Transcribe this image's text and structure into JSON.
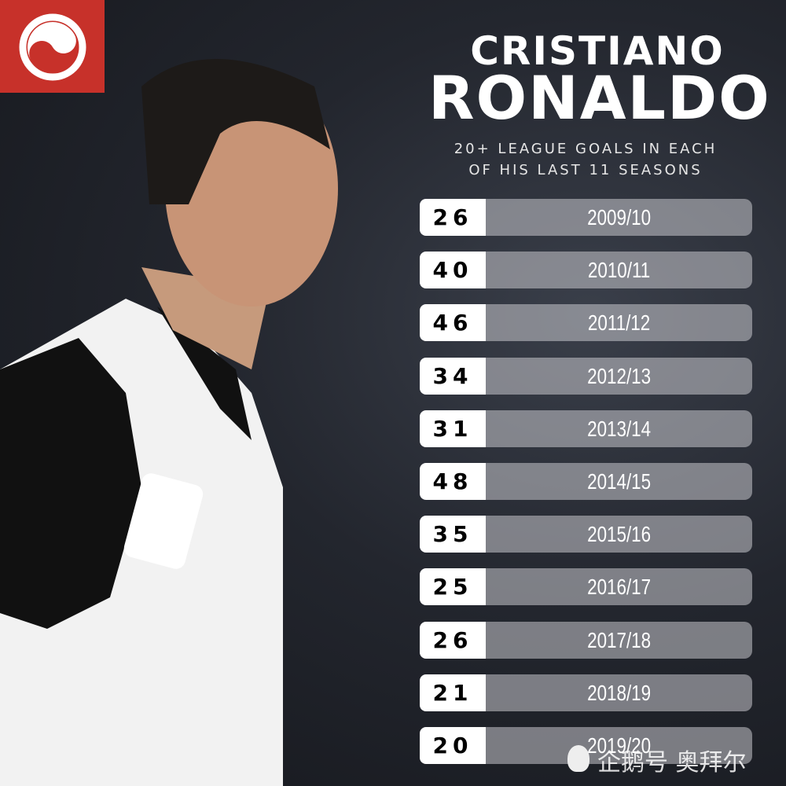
{
  "title": {
    "line1": "CRISTIANO",
    "line2": "RONALDO"
  },
  "subtitle": {
    "line1": "20+ LEAGUE GOALS IN EACH",
    "line2": "OF HIS LAST 11 SEASONS"
  },
  "brand_color": "#c7312a",
  "seasons": [
    {
      "goals": "26",
      "season": "2009/10"
    },
    {
      "goals": "40",
      "season": "2010/11"
    },
    {
      "goals": "46",
      "season": "2011/12"
    },
    {
      "goals": "34",
      "season": "2012/13"
    },
    {
      "goals": "31",
      "season": "2013/14"
    },
    {
      "goals": "48",
      "season": "2014/15"
    },
    {
      "goals": "35",
      "season": "2015/16"
    },
    {
      "goals": "25",
      "season": "2016/17"
    },
    {
      "goals": "26",
      "season": "2017/18"
    },
    {
      "goals": "21",
      "season": "2018/19"
    },
    {
      "goals": "20",
      "season": "2019/20"
    }
  ],
  "watermark": "企鹅号 奥拜尔"
}
